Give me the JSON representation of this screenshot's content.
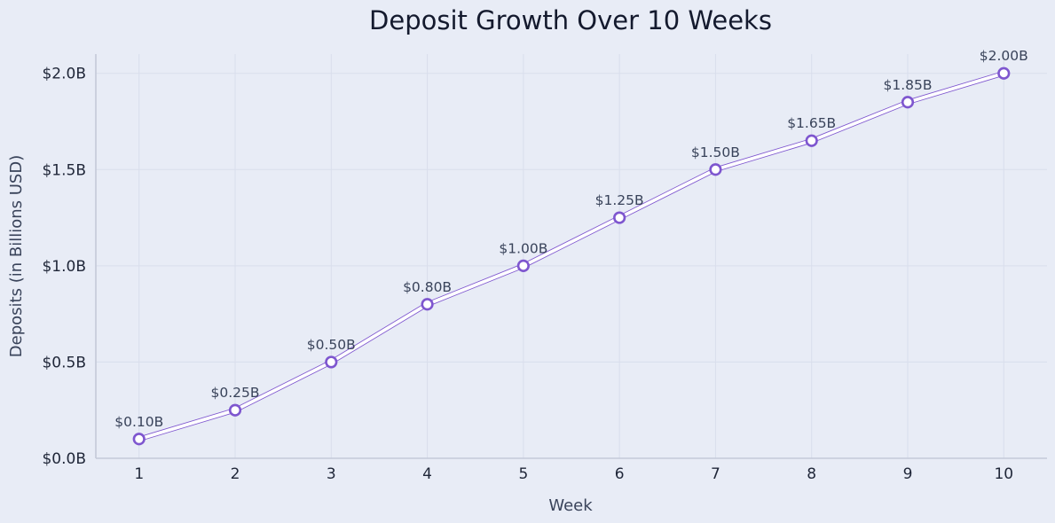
{
  "chart_data": {
    "type": "line",
    "title": "Deposit Growth Over 10 Weeks",
    "xlabel": "Week",
    "ylabel": "Deposits (in Billions USD)",
    "x": [
      1,
      2,
      3,
      4,
      5,
      6,
      7,
      8,
      9,
      10
    ],
    "xlim": [
      0.55,
      10.45
    ],
    "ylim": [
      0,
      2.1
    ],
    "y_ticks": [
      0,
      0.5,
      1.0,
      1.5,
      2.0
    ],
    "y_tick_labels": [
      "$0.0B",
      "$0.5B",
      "$1.0B",
      "$1.5B",
      "$2.0B"
    ],
    "grid": true,
    "series": [
      {
        "values": [
          0.1,
          0.25,
          0.5,
          0.8,
          1.0,
          1.25,
          1.5,
          1.65,
          1.85,
          2.0
        ],
        "data_labels": [
          "$0.10B",
          "$0.25B",
          "$0.50B",
          "$0.80B",
          "$1.00B",
          "$1.25B",
          "$1.50B",
          "$1.65B",
          "$1.85B",
          "$2.00B"
        ]
      }
    ],
    "colors": {
      "background": "#e8ecf6",
      "line": "#7e56cf",
      "marker_fill": "#ffffff",
      "grid": "#d9deec",
      "axis": "#c4c9d8"
    }
  }
}
